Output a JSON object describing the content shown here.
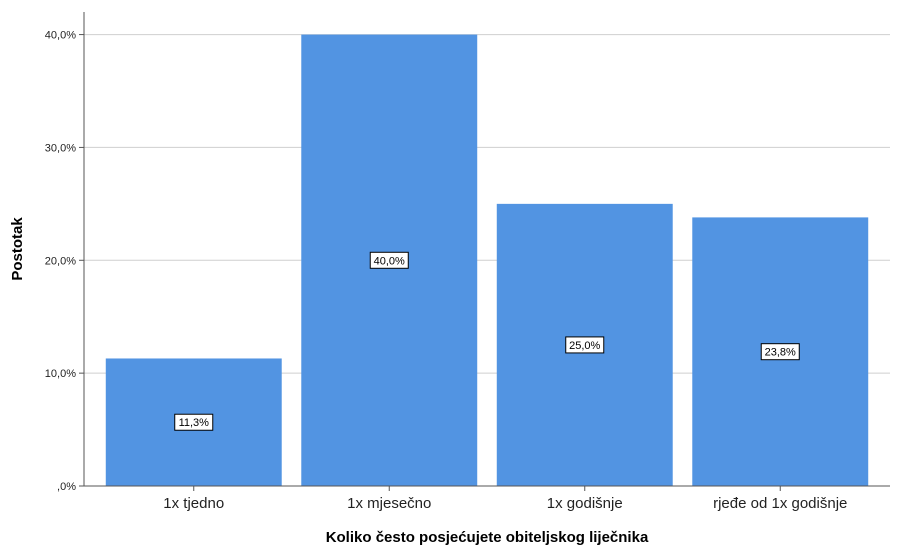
{
  "chart_data": {
    "type": "bar",
    "title": "",
    "xlabel": "Koliko često posjećujete obiteljskog liječnika",
    "ylabel": "Postotak",
    "categories": [
      "1x tjedno",
      "1x mjesečno",
      "1x godišnje",
      "rjeđe od 1x godišnje"
    ],
    "values": [
      11.3,
      40.0,
      25.0,
      23.8
    ],
    "data_labels": [
      "11,3%",
      "40,0%",
      "25,0%",
      "23,8%"
    ],
    "ylim": [
      0,
      42
    ],
    "yticks": [
      0,
      10,
      20,
      30,
      40
    ],
    "ytick_labels": [
      ",0%",
      "10,0%",
      "20,0%",
      "30,0%",
      "40,0%"
    ],
    "grid": true,
    "bar_color": "#5294e2"
  }
}
